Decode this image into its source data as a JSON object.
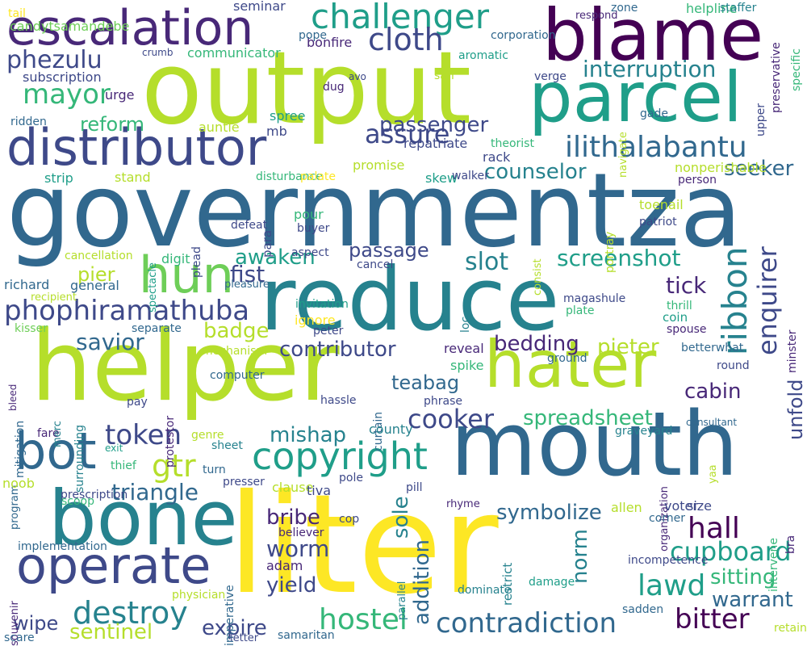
{
  "colors": {
    "background": "#ffffff",
    "palette": [
      "#440154",
      "#482878",
      "#3e4989",
      "#31688e",
      "#26828e",
      "#1f9e89",
      "#35b779",
      "#6ece58",
      "#b5de2b",
      "#fde725"
    ]
  },
  "words": [
    {
      "text": "governmentza",
      "color": "#31688e"
    },
    {
      "text": "reduce",
      "color": "#26828e"
    },
    {
      "text": "liter",
      "color": "#fde725"
    },
    {
      "text": "output",
      "color": "#b5de2b"
    },
    {
      "text": "mouth",
      "color": "#31688e"
    },
    {
      "text": "helper",
      "color": "#b5de2b"
    },
    {
      "text": "blame",
      "color": "#440154"
    },
    {
      "text": "bone",
      "color": "#26828e"
    },
    {
      "text": "parcel",
      "color": "#1f9e89"
    },
    {
      "text": "hater",
      "color": "#b5de2b"
    },
    {
      "text": "distributor",
      "color": "#3e4989"
    },
    {
      "text": "escalation",
      "color": "#482878"
    },
    {
      "text": "operate",
      "color": "#3e4989"
    },
    {
      "text": "bot",
      "color": "#31688e"
    },
    {
      "text": "challenger",
      "color": "#1f9e89"
    },
    {
      "text": "hun",
      "color": "#6ece58"
    },
    {
      "text": "copyright",
      "color": "#1f9e89"
    },
    {
      "text": "enquirer",
      "color": "#3e4989"
    },
    {
      "text": "ribbon",
      "color": "#26828e"
    },
    {
      "text": "ilithalabantu",
      "color": "#31688e"
    },
    {
      "text": "phophiramathuba",
      "color": "#3e4989"
    },
    {
      "text": "cloth",
      "color": "#3e4989"
    },
    {
      "text": "phezulu",
      "color": "#3e4989"
    },
    {
      "text": "mayor",
      "color": "#35b779"
    },
    {
      "text": "assure",
      "color": "#3e4989"
    },
    {
      "text": "passenger",
      "color": "#3e4989"
    },
    {
      "text": "hostel",
      "color": "#35b779"
    },
    {
      "text": "contradiction",
      "color": "#31688e"
    },
    {
      "text": "bitter",
      "color": "#440154"
    },
    {
      "text": "cupboard",
      "color": "#1f9e89"
    },
    {
      "text": "lawd",
      "color": "#1f9e89"
    },
    {
      "text": "hall",
      "color": "#440154"
    },
    {
      "text": "destroy",
      "color": "#26828e"
    },
    {
      "text": "cooker",
      "color": "#3e4989"
    },
    {
      "text": "gtr",
      "color": "#b5de2b"
    },
    {
      "text": "token",
      "color": "#3e4989"
    },
    {
      "text": "unfold",
      "color": "#3e4989"
    },
    {
      "text": "screenshot",
      "color": "#1f9e89"
    },
    {
      "text": "spreadsheet",
      "color": "#35b779"
    },
    {
      "text": "interruption",
      "color": "#26828e"
    },
    {
      "text": "reform",
      "color": "#35b779"
    },
    {
      "text": "counselor",
      "color": "#26828e"
    },
    {
      "text": "seeker",
      "color": "#31688e"
    },
    {
      "text": "passage",
      "color": "#3e4989"
    },
    {
      "text": "slot",
      "color": "#26828e"
    },
    {
      "text": "awaken",
      "color": "#1f9e89"
    },
    {
      "text": "fist",
      "color": "#3e4989"
    },
    {
      "text": "pier",
      "color": "#b5de2b"
    },
    {
      "text": "badge",
      "color": "#b5de2b"
    },
    {
      "text": "savior",
      "color": "#31688e"
    },
    {
      "text": "contributor",
      "color": "#3e4989"
    },
    {
      "text": "bedding",
      "color": "#482878"
    },
    {
      "text": "pieter",
      "color": "#b5de2b"
    },
    {
      "text": "teabag",
      "color": "#31688e"
    },
    {
      "text": "mishap",
      "color": "#26828e"
    },
    {
      "text": "cabin",
      "color": "#482878"
    },
    {
      "text": "tick",
      "color": "#482878"
    },
    {
      "text": "worm",
      "color": "#3e4989"
    },
    {
      "text": "sole",
      "color": "#26828e"
    },
    {
      "text": "addition",
      "color": "#31688e"
    },
    {
      "text": "norm",
      "color": "#26828e"
    },
    {
      "text": "yield",
      "color": "#3e4989"
    },
    {
      "text": "bribe",
      "color": "#482878"
    },
    {
      "text": "triangle",
      "color": "#31688e"
    },
    {
      "text": "symbolize",
      "color": "#31688e"
    },
    {
      "text": "sitting",
      "color": "#35b779"
    },
    {
      "text": "warrant",
      "color": "#31688e"
    },
    {
      "text": "expire",
      "color": "#3e4989"
    },
    {
      "text": "sentinel",
      "color": "#b5de2b"
    },
    {
      "text": "wipe",
      "color": "#3e4989"
    },
    {
      "text": "subscription",
      "color": "#3e4989"
    },
    {
      "text": "urge",
      "color": "#482878"
    },
    {
      "text": "candytsamandebe",
      "color": "#6ece58"
    },
    {
      "text": "communicator",
      "color": "#35b779"
    },
    {
      "text": "bonfire",
      "color": "#482878"
    },
    {
      "text": "seminar",
      "color": "#3e4989"
    },
    {
      "text": "pope",
      "color": "#31688e"
    },
    {
      "text": "respond",
      "color": "#482878"
    },
    {
      "text": "zone",
      "color": "#31688e"
    },
    {
      "text": "helpline",
      "color": "#35b779"
    },
    {
      "text": "staffer",
      "color": "#26828e"
    },
    {
      "text": "corporation",
      "color": "#31688e"
    },
    {
      "text": "aromatic",
      "color": "#1f9e89"
    },
    {
      "text": "crumb",
      "color": "#3e4989"
    },
    {
      "text": "san",
      "color": "#b5de2b"
    },
    {
      "text": "avo",
      "color": "#3e4989"
    },
    {
      "text": "dug",
      "color": "#482878"
    },
    {
      "text": "verge",
      "color": "#3e4989"
    },
    {
      "text": "ridden",
      "color": "#31688e"
    },
    {
      "text": "auntie",
      "color": "#b5de2b"
    },
    {
      "text": "spree",
      "color": "#1f9e89"
    },
    {
      "text": "mb",
      "color": "#3e4989"
    },
    {
      "text": "repatriate",
      "color": "#3e4989"
    },
    {
      "text": "theorist",
      "color": "#35b779"
    },
    {
      "text": "rack",
      "color": "#3e4989"
    },
    {
      "text": "promise",
      "color": "#b5de2b"
    },
    {
      "text": "skew",
      "color": "#1f9e89"
    },
    {
      "text": "walker",
      "color": "#3e4989"
    },
    {
      "text": "strip",
      "color": "#1f9e89"
    },
    {
      "text": "stand",
      "color": "#b5de2b"
    },
    {
      "text": "disturbance",
      "color": "#35b779"
    },
    {
      "text": "palate",
      "color": "#fde725"
    },
    {
      "text": "nonperishable",
      "color": "#b5de2b"
    },
    {
      "text": "person",
      "color": "#482878"
    },
    {
      "text": "navigate",
      "color": "#b5de2b"
    },
    {
      "text": "gade",
      "color": "#31688e"
    },
    {
      "text": "upper",
      "color": "#3e4989"
    },
    {
      "text": "specific",
      "color": "#35b779"
    },
    {
      "text": "preservative",
      "color": "#482878"
    },
    {
      "text": "pour",
      "color": "#35b779"
    },
    {
      "text": "buyer",
      "color": "#3e4989"
    },
    {
      "text": "para",
      "color": "#3e4989"
    },
    {
      "text": "plead",
      "color": "#3e4989"
    },
    {
      "text": "defeat",
      "color": "#3e4989"
    },
    {
      "text": "aspect",
      "color": "#3e4989"
    },
    {
      "text": "toenail",
      "color": "#b5de2b"
    },
    {
      "text": "patriot",
      "color": "#3e4989"
    },
    {
      "text": "portray",
      "color": "#b5de2b"
    },
    {
      "text": "consist",
      "color": "#b5de2b"
    },
    {
      "text": "cancellation",
      "color": "#b5de2b"
    },
    {
      "text": "spectacle",
      "color": "#1f9e89"
    },
    {
      "text": "digit",
      "color": "#35b779"
    },
    {
      "text": "cancel",
      "color": "#3e4989"
    },
    {
      "text": "richard",
      "color": "#31688e"
    },
    {
      "text": "general",
      "color": "#31688e"
    },
    {
      "text": "pleasure",
      "color": "#31688e"
    },
    {
      "text": "recipient",
      "color": "#b5de2b"
    },
    {
      "text": "kisser",
      "color": "#6ece58"
    },
    {
      "text": "separate",
      "color": "#31688e"
    },
    {
      "text": "invitation",
      "color": "#1f9e89"
    },
    {
      "text": "ignore",
      "color": "#fde725"
    },
    {
      "text": "peter",
      "color": "#3e4989"
    },
    {
      "text": "loc",
      "color": "#26828e"
    },
    {
      "text": "magashule",
      "color": "#3e4989"
    },
    {
      "text": "plate",
      "color": "#35b779"
    },
    {
      "text": "thrill",
      "color": "#35b779"
    },
    {
      "text": "coin",
      "color": "#1f9e89"
    },
    {
      "text": "spouse",
      "color": "#482878"
    },
    {
      "text": "minster",
      "color": "#482878"
    },
    {
      "text": "mechanism",
      "color": "#b5de2b"
    },
    {
      "text": "reveal",
      "color": "#482878"
    },
    {
      "text": "ground",
      "color": "#31688e"
    },
    {
      "text": "betterwhat",
      "color": "#31688e"
    },
    {
      "text": "round",
      "color": "#3e4989"
    },
    {
      "text": "spike",
      "color": "#35b779"
    },
    {
      "text": "bleed",
      "color": "#482878"
    },
    {
      "text": "mitigation",
      "color": "#31688e"
    },
    {
      "text": "surrounding",
      "color": "#26828e"
    },
    {
      "text": "protestor",
      "color": "#482878"
    },
    {
      "text": "computer",
      "color": "#31688e"
    },
    {
      "text": "pay",
      "color": "#3e4989"
    },
    {
      "text": "curtain",
      "color": "#31688e"
    },
    {
      "text": "hassle",
      "color": "#3e4989"
    },
    {
      "text": "phrase",
      "color": "#3e4989"
    },
    {
      "text": "county",
      "color": "#26828e"
    },
    {
      "text": "fare",
      "color": "#482878"
    },
    {
      "text": "merc",
      "color": "#26828e"
    },
    {
      "text": "genre",
      "color": "#b5de2b"
    },
    {
      "text": "sheet",
      "color": "#26828e"
    },
    {
      "text": "exit",
      "color": "#1f9e89"
    },
    {
      "text": "program",
      "color": "#31688e"
    },
    {
      "text": "graveyard",
      "color": "#26828e"
    },
    {
      "text": "consultant",
      "color": "#31688e"
    },
    {
      "text": "yaa",
      "color": "#b5de2b"
    },
    {
      "text": "organization",
      "color": "#482878"
    },
    {
      "text": "thief",
      "color": "#35b779"
    },
    {
      "text": "turn",
      "color": "#31688e"
    },
    {
      "text": "noob",
      "color": "#b5de2b"
    },
    {
      "text": "prescription",
      "color": "#3e4989"
    },
    {
      "text": "presser",
      "color": "#3e4989"
    },
    {
      "text": "clause",
      "color": "#b5de2b"
    },
    {
      "text": "tiva",
      "color": "#3e4989"
    },
    {
      "text": "pole",
      "color": "#3e4989"
    },
    {
      "text": "pill",
      "color": "#3e4989"
    },
    {
      "text": "scoop",
      "color": "#35b779"
    },
    {
      "text": "souvenir",
      "color": "#482878"
    },
    {
      "text": "implementation",
      "color": "#31688e"
    },
    {
      "text": "cop",
      "color": "#3e4989"
    },
    {
      "text": "rhyme",
      "color": "#482878"
    },
    {
      "text": "allen",
      "color": "#b5de2b"
    },
    {
      "text": "corner",
      "color": "#31688e"
    },
    {
      "text": "voter",
      "color": "#3e4989"
    },
    {
      "text": "size",
      "color": "#3e4989"
    },
    {
      "text": "intervene",
      "color": "#35b779"
    },
    {
      "text": "bra",
      "color": "#482878"
    },
    {
      "text": "believer",
      "color": "#482878"
    },
    {
      "text": "adam",
      "color": "#482878"
    },
    {
      "text": "restrict",
      "color": "#26828e"
    },
    {
      "text": "parallel",
      "color": "#26828e"
    },
    {
      "text": "imperative",
      "color": "#31688e"
    },
    {
      "text": "incompetence",
      "color": "#3e4989"
    },
    {
      "text": "damage",
      "color": "#1f9e89"
    },
    {
      "text": "physician",
      "color": "#b5de2b"
    },
    {
      "text": "dominate",
      "color": "#26828e"
    },
    {
      "text": "sadden",
      "color": "#31688e"
    },
    {
      "text": "scare",
      "color": "#31688e"
    },
    {
      "text": "samaritan",
      "color": "#31688e"
    },
    {
      "text": "letter",
      "color": "#3e4989"
    },
    {
      "text": "retain",
      "color": "#b5de2b"
    },
    {
      "text": "tail",
      "color": "#fde725"
    }
  ]
}
